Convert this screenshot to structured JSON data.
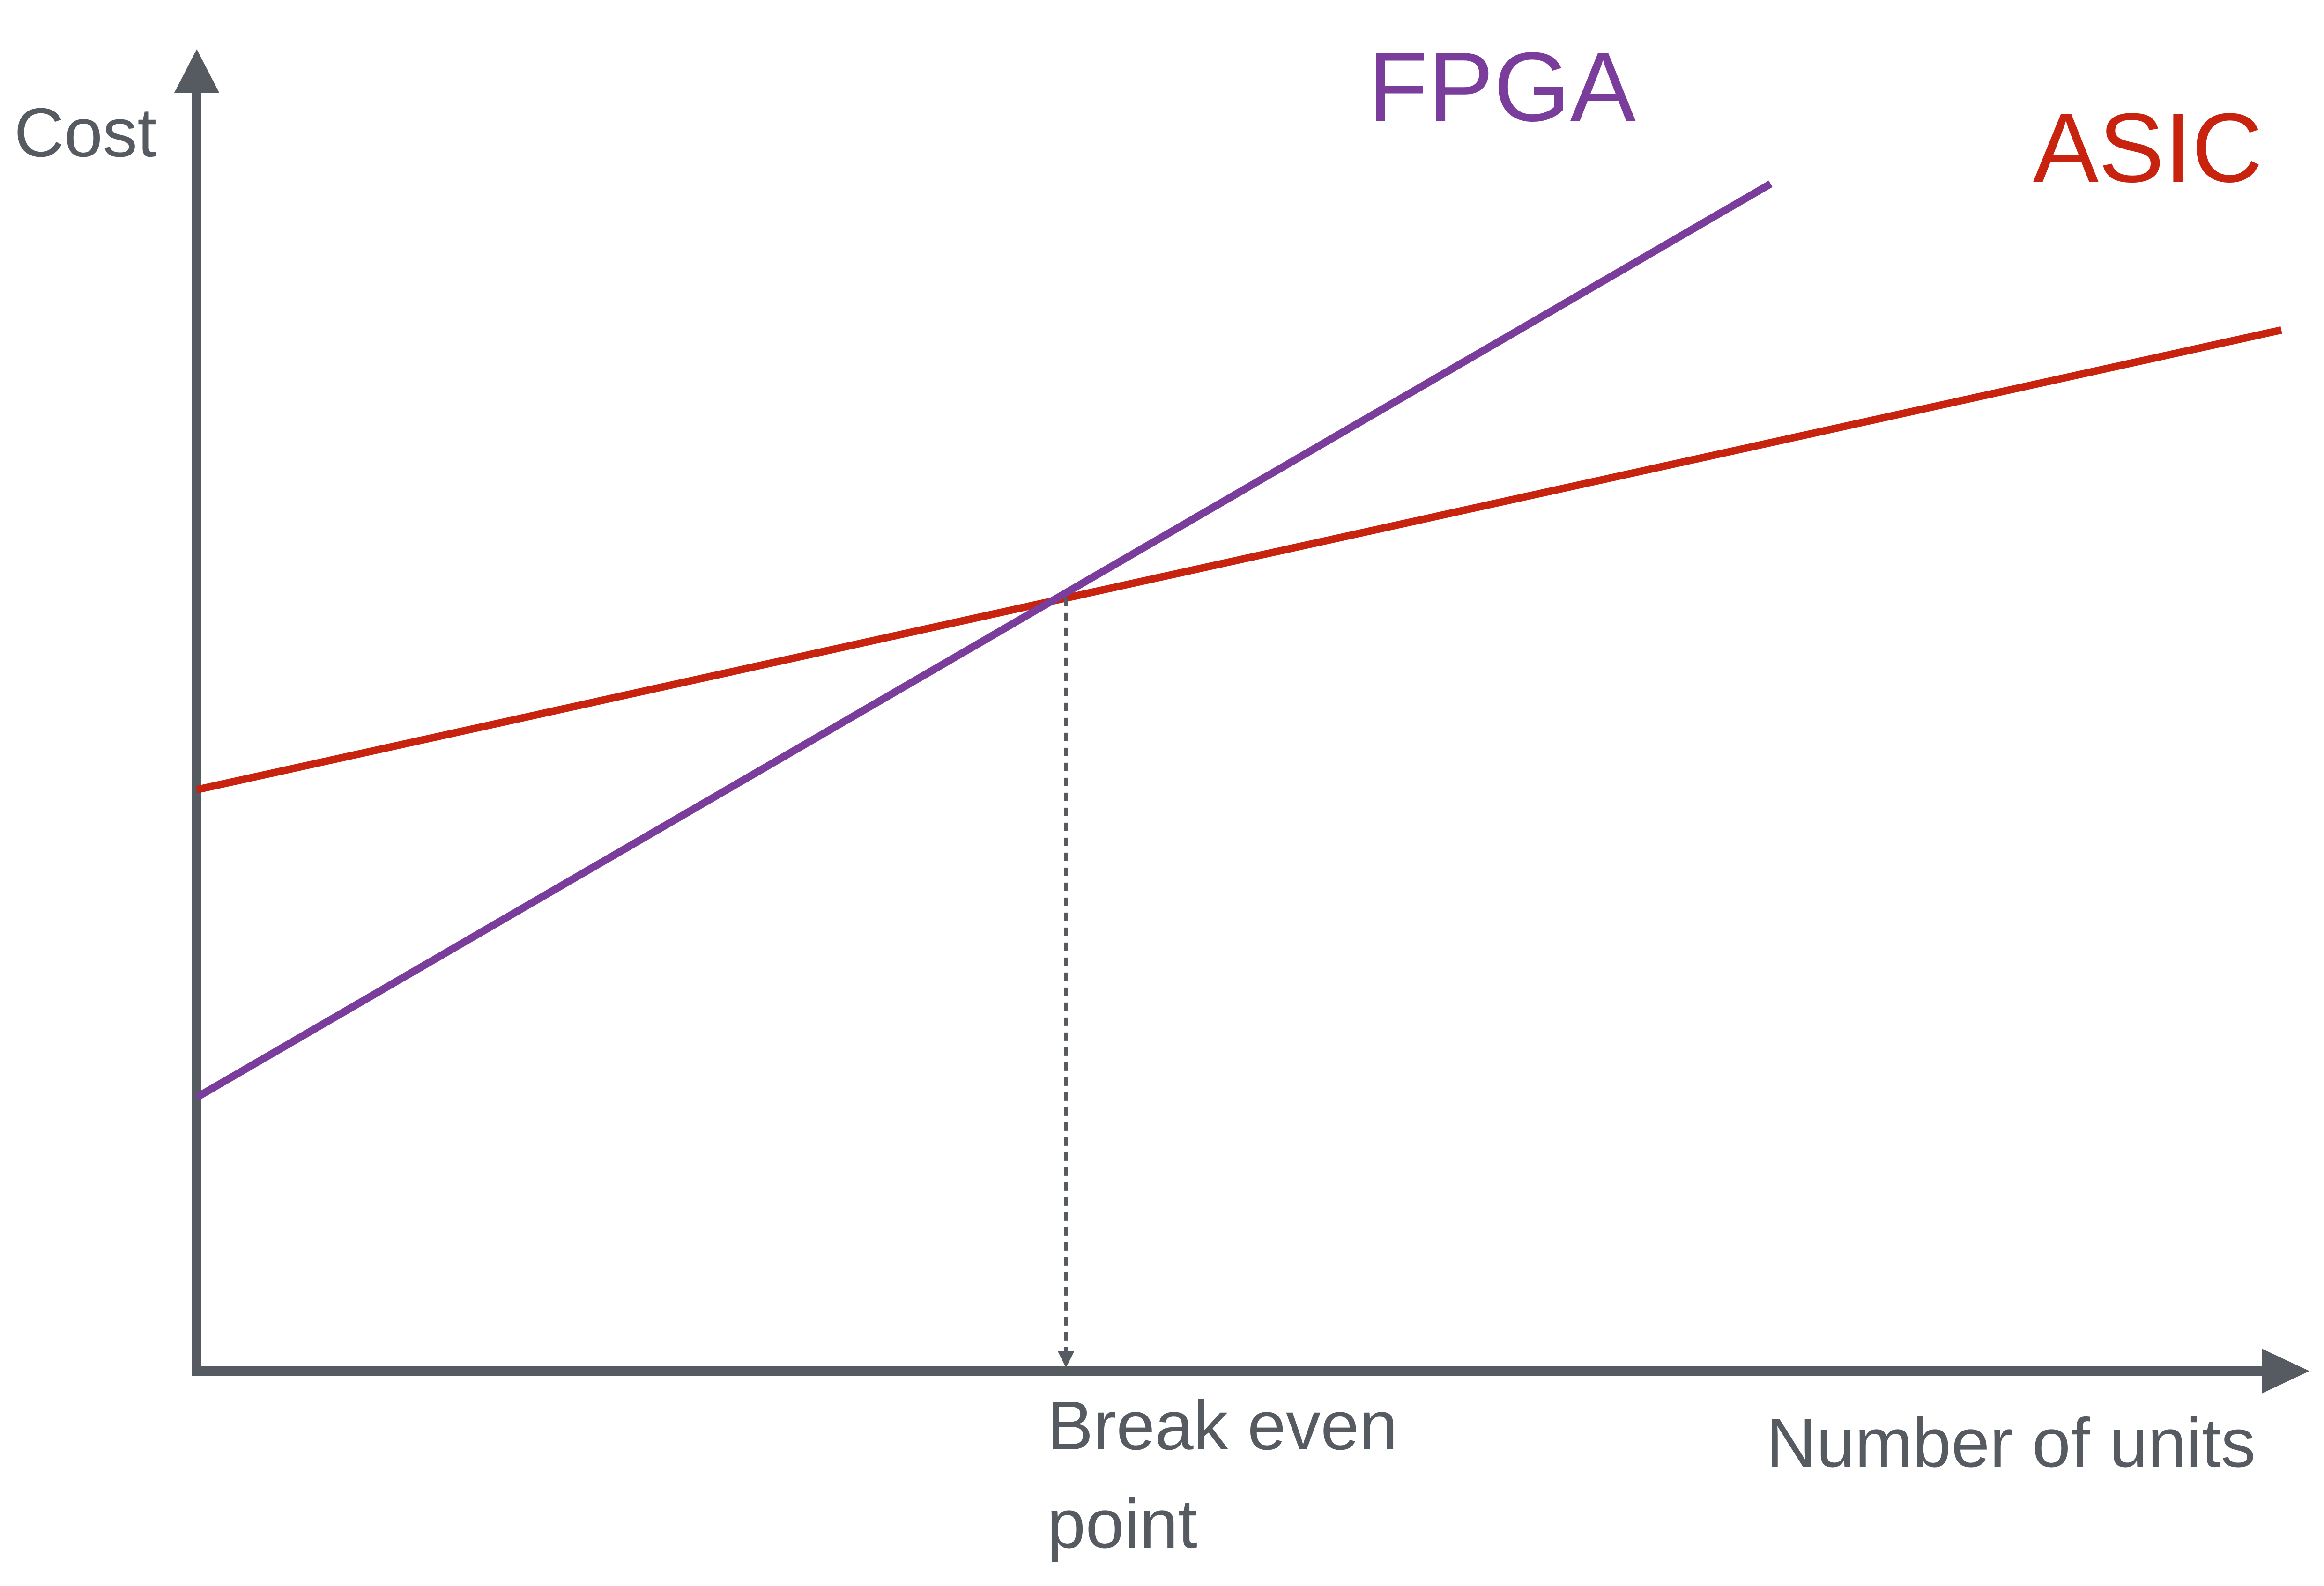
{
  "colors": {
    "axis": "#565a61",
    "fpga": "#7a3d9c",
    "asic": "#c8230e",
    "background": "#ffffff"
  },
  "chart_data": {
    "type": "line",
    "title": "",
    "xlabel": "Number of units",
    "ylabel": "Cost",
    "xlim": [
      0,
      100
    ],
    "ylim": [
      0,
      100
    ],
    "grid": false,
    "legend": "inline-labels",
    "series": [
      {
        "name": "FPGA",
        "color_key": "fpga",
        "x": [
          0,
          75.5
        ],
        "y": [
          23.4,
          101.5
        ]
      },
      {
        "name": "ASIC",
        "color_key": "asic",
        "x": [
          0,
          100
        ],
        "y": [
          49.7,
          89.0
        ]
      }
    ],
    "annotations": [
      {
        "type": "break-even",
        "x": 41.7,
        "y": 66.1,
        "label_lines": [
          "Break even",
          "point"
        ]
      }
    ]
  }
}
